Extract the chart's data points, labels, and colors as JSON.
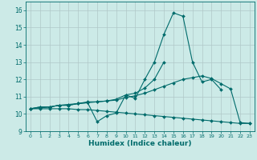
{
  "xlabel": "Humidex (Indice chaleur)",
  "background_color": "#cceae7",
  "grid_color": "#b0c8c8",
  "line_color": "#006b6b",
  "xlim": [
    -0.5,
    23.5
  ],
  "ylim": [
    9.0,
    16.5
  ],
  "yticks": [
    9,
    10,
    11,
    12,
    13,
    14,
    15,
    16
  ],
  "xticks": [
    0,
    1,
    2,
    3,
    4,
    5,
    6,
    7,
    8,
    9,
    10,
    11,
    12,
    13,
    14,
    15,
    16,
    17,
    18,
    19,
    20,
    21,
    22,
    23
  ],
  "series": {
    "line1_wavy": {
      "x": [
        0,
        1,
        2,
        3,
        4,
        5,
        6,
        7,
        8,
        9,
        10,
        11,
        12,
        13,
        14,
        15,
        16,
        17,
        18,
        19,
        20
      ],
      "y": [
        10.3,
        10.4,
        10.4,
        10.5,
        10.5,
        10.6,
        10.7,
        10.7,
        10.75,
        10.85,
        11.1,
        10.9,
        12.0,
        13.0,
        14.6,
        15.85,
        15.65,
        13.0,
        11.85,
        12.0,
        11.4
      ]
    },
    "line2_dip": {
      "x": [
        0,
        1,
        2,
        3,
        4,
        5,
        6,
        7,
        8,
        9,
        10,
        11,
        12,
        13,
        14
      ],
      "y": [
        10.3,
        10.4,
        10.4,
        10.5,
        10.5,
        10.6,
        10.65,
        9.55,
        9.9,
        10.05,
        11.1,
        11.2,
        11.5,
        12.0,
        13.0
      ]
    },
    "line3_diagonal": {
      "x": [
        0,
        1,
        2,
        3,
        4,
        5,
        6,
        7,
        8,
        9,
        10,
        11,
        12,
        13,
        14,
        15,
        16,
        17,
        18,
        19,
        20,
        21,
        22,
        23
      ],
      "y": [
        10.3,
        10.35,
        10.4,
        10.5,
        10.55,
        10.6,
        10.65,
        10.7,
        10.75,
        10.8,
        10.95,
        11.05,
        11.2,
        11.4,
        11.6,
        11.8,
        12.0,
        12.1,
        12.2,
        12.05,
        11.75,
        11.45,
        9.5,
        9.45
      ]
    },
    "line4_decline": {
      "x": [
        0,
        1,
        2,
        3,
        4,
        5,
        6,
        7,
        8,
        9,
        10,
        11,
        12,
        13,
        14,
        15,
        16,
        17,
        18,
        19,
        20,
        21,
        22,
        23
      ],
      "y": [
        10.3,
        10.3,
        10.3,
        10.3,
        10.3,
        10.25,
        10.25,
        10.2,
        10.15,
        10.1,
        10.05,
        10.0,
        9.95,
        9.9,
        9.85,
        9.8,
        9.75,
        9.7,
        9.65,
        9.6,
        9.55,
        9.5,
        9.45,
        9.45
      ]
    }
  }
}
